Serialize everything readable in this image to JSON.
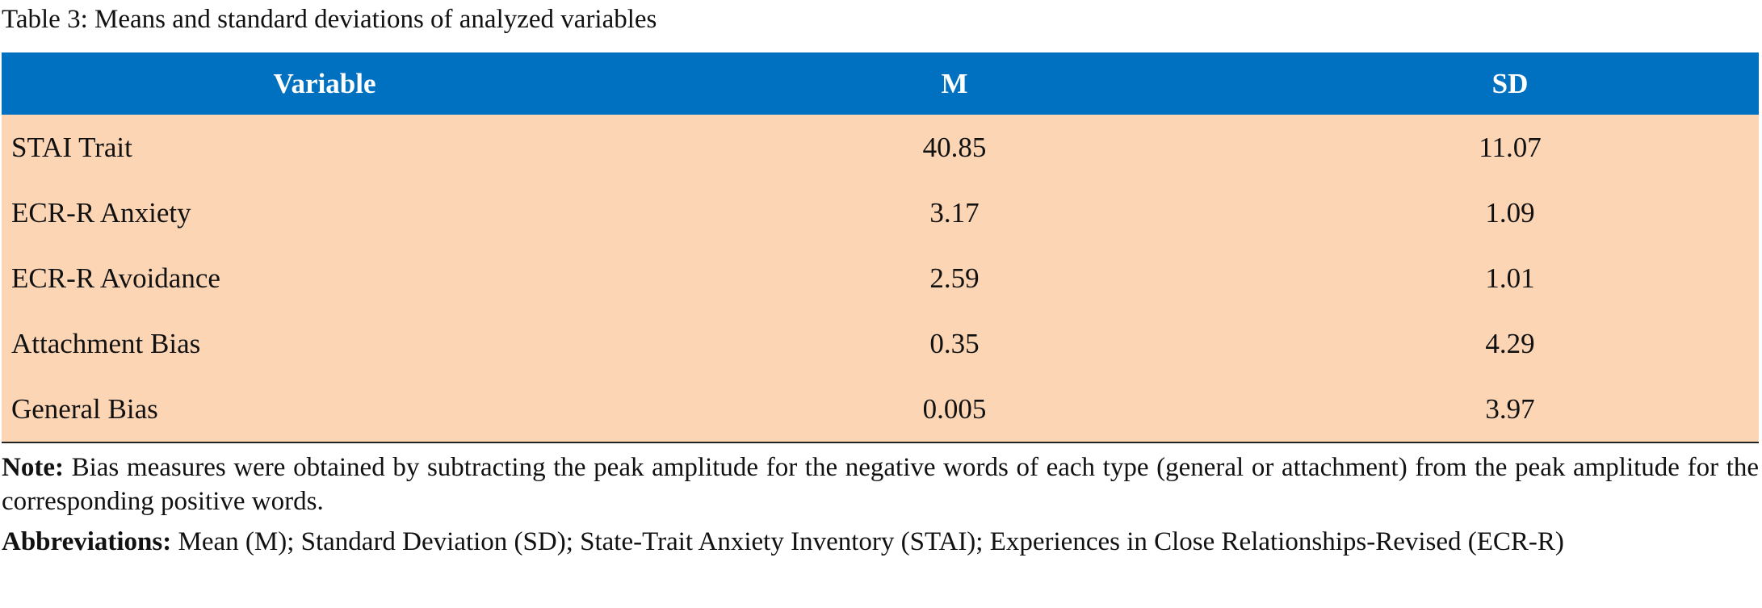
{
  "title": "Table 3: Means and standard deviations of analyzed variables",
  "table": {
    "header": [
      "Variable",
      "M",
      "SD"
    ],
    "rows": [
      [
        "STAI Trait",
        "40.85",
        "11.07"
      ],
      [
        "ECR-R Anxiety",
        "3.17",
        "1.09"
      ],
      [
        "ECR-R Avoidance",
        "2.59",
        "1.01"
      ],
      [
        "Attachment Bias",
        "0.35",
        "4.29"
      ],
      [
        "General Bias",
        "0.005",
        "3.97"
      ]
    ]
  },
  "note": {
    "label": "Note:",
    "text": "Bias measures were obtained by subtracting the peak amplitude for the negative words of each type (general or attachment) from the peak amplitude for the corresponding positive words."
  },
  "abbreviations": {
    "label": "Abbreviations:",
    "text": "Mean (M); Standard Deviation (SD); State-Trait Anxiety Inventory (STAI); Experiences in Close Relationships-Revised (ECR-R)"
  }
}
